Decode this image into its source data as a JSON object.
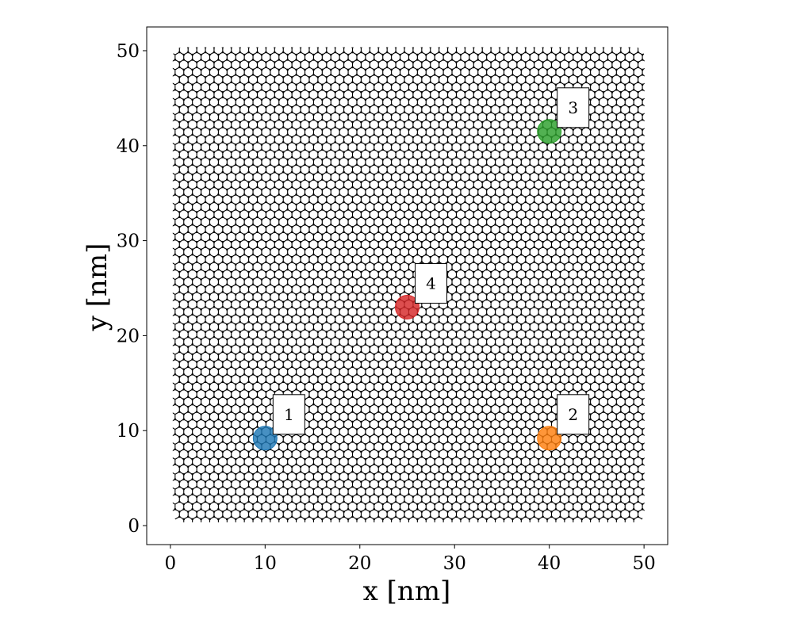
{
  "chart_data": {
    "type": "scatter",
    "title": "",
    "xlabel": "x [nm]",
    "ylabel": "y [nm]",
    "xlim": [
      -2.5,
      52.5
    ],
    "ylim": [
      -2,
      52.5
    ],
    "xticks": [
      0,
      10,
      20,
      30,
      40,
      50
    ],
    "yticks": [
      0,
      10,
      20,
      30,
      40,
      50
    ],
    "grid": false,
    "lattice": {
      "kind": "honeycomb",
      "color": "#000000",
      "x_range": [
        0.5,
        49.8
      ],
      "y_range": [
        0.6,
        50.1
      ]
    },
    "series": [
      {
        "label": "1",
        "x": 10,
        "y": 9.2,
        "color": "#1f77b4"
      },
      {
        "label": "2",
        "x": 40,
        "y": 9.2,
        "color": "#ff7f0e"
      },
      {
        "label": "3",
        "x": 40,
        "y": 41.5,
        "color": "#2ca02c"
      },
      {
        "label": "4",
        "x": 25,
        "y": 23,
        "color": "#d62728"
      }
    ]
  }
}
